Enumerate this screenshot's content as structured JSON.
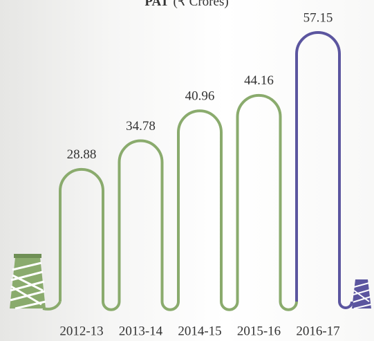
{
  "chart_data": {
    "type": "bar",
    "title": "PAT",
    "subtitle": "(₹ Crores)",
    "categories": [
      "2012-13",
      "2013-14",
      "2014-15",
      "2015-16",
      "2016-17"
    ],
    "values": [
      28.88,
      34.78,
      40.96,
      44.16,
      57.15
    ],
    "colors": [
      "#8aab6d",
      "#8aab6d",
      "#8aab6d",
      "#8aab6d",
      "#5b559f"
    ]
  }
}
